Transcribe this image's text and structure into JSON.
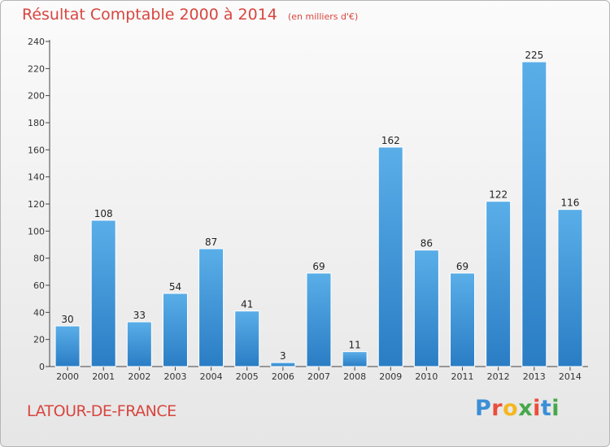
{
  "title": "Résultat Comptable 2000 à 2014",
  "subtitle": "(en milliers d'€)",
  "location": "LATOUR-DE-FRANCE",
  "brand": {
    "letters": [
      "P",
      "r",
      "o",
      "x",
      "i",
      "t",
      "i"
    ],
    "colors": [
      "#3a8fd6",
      "#e94e3c",
      "#f4b722",
      "#47a84b",
      "#e94e3c",
      "#3a8fd6",
      "#47a84b"
    ]
  },
  "chart_data": {
    "type": "bar",
    "title": "Résultat Comptable 2000 à 2014",
    "subtitle": "(en milliers d'€)",
    "xlabel": "",
    "ylabel": "",
    "categories": [
      "2000",
      "2001",
      "2002",
      "2003",
      "2004",
      "2005",
      "2006",
      "2007",
      "2008",
      "2009",
      "2010",
      "2011",
      "2012",
      "2013",
      "2014"
    ],
    "values": [
      30,
      108,
      33,
      54,
      87,
      41,
      3,
      69,
      11,
      162,
      86,
      69,
      122,
      225,
      116
    ],
    "ylim": [
      0,
      240
    ],
    "yticks": [
      0,
      20,
      40,
      60,
      80,
      100,
      120,
      140,
      160,
      180,
      200,
      220,
      240
    ],
    "grid": false,
    "bar_color": "#3f97dc"
  }
}
